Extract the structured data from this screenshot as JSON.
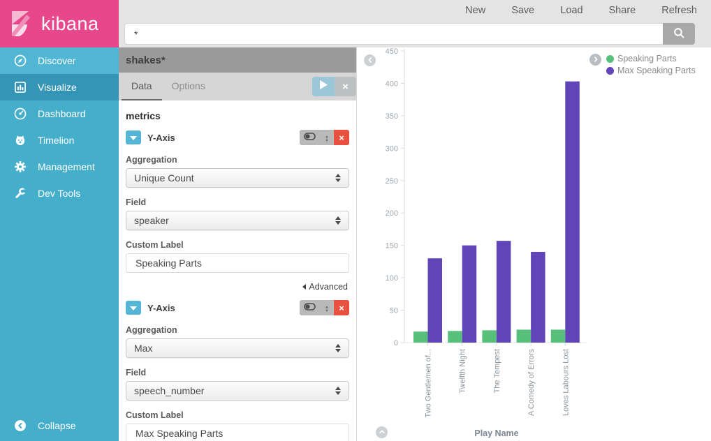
{
  "topbar": {
    "menu_items": [
      "New",
      "Save",
      "Load",
      "Share",
      "Refresh"
    ],
    "search_value": "*"
  },
  "sidebar": {
    "brand": "kibana",
    "items": [
      {
        "label": "Discover",
        "icon": "compass-icon"
      },
      {
        "label": "Visualize",
        "icon": "bar-chart-icon",
        "active": true
      },
      {
        "label": "Dashboard",
        "icon": "gauge-icon"
      },
      {
        "label": "Timelion",
        "icon": "lion-icon"
      },
      {
        "label": "Management",
        "icon": "gear-icon"
      },
      {
        "label": "Dev Tools",
        "icon": "wrench-icon"
      }
    ],
    "collapse_label": "Collapse"
  },
  "config": {
    "index_pattern": "shakes*",
    "tabs": {
      "data": "Data",
      "options": "Options"
    },
    "metrics_title": "metrics",
    "advanced_label": "Advanced",
    "metrics": [
      {
        "title": "Y-Axis",
        "aggregation_label": "Aggregation",
        "aggregation_value": "Unique Count",
        "field_label": "Field",
        "field_value": "speaker",
        "custom_label_label": "Custom Label",
        "custom_label_value": "Speaking Parts"
      },
      {
        "title": "Y-Axis",
        "aggregation_label": "Aggregation",
        "aggregation_value": "Max",
        "field_label": "Field",
        "field_value": "speech_number",
        "custom_label_label": "Custom Label",
        "custom_label_value": "Max Speaking Parts"
      }
    ]
  },
  "colors": {
    "brand_pink": "#e8478b",
    "sidebar_teal": "#44aecb",
    "accent_blue": "#55b5d6",
    "danger_red": "#e8503f",
    "series_green": "#57c17b",
    "series_purple": "#6144b8"
  },
  "chart_data": {
    "type": "bar",
    "title": "",
    "categories": [
      "Two Gentlemen of...",
      "Twelfth Night",
      "The Tempest",
      "A Comedy of Errors",
      "Loves Labours Lost"
    ],
    "series": [
      {
        "name": "Speaking Parts",
        "color": "#57c17b",
        "values": [
          17,
          18,
          19,
          20,
          20
        ]
      },
      {
        "name": "Max Speaking Parts",
        "color": "#6144b8",
        "values": [
          130,
          150,
          157,
          140,
          403
        ]
      }
    ],
    "xlabel": "Play Name",
    "ylabel": "",
    "ylim": [
      0,
      450
    ],
    "y_ticks": [
      0,
      50,
      100,
      150,
      200,
      250,
      300,
      350,
      400,
      450
    ],
    "grid": false,
    "legend_position": "top-right"
  }
}
